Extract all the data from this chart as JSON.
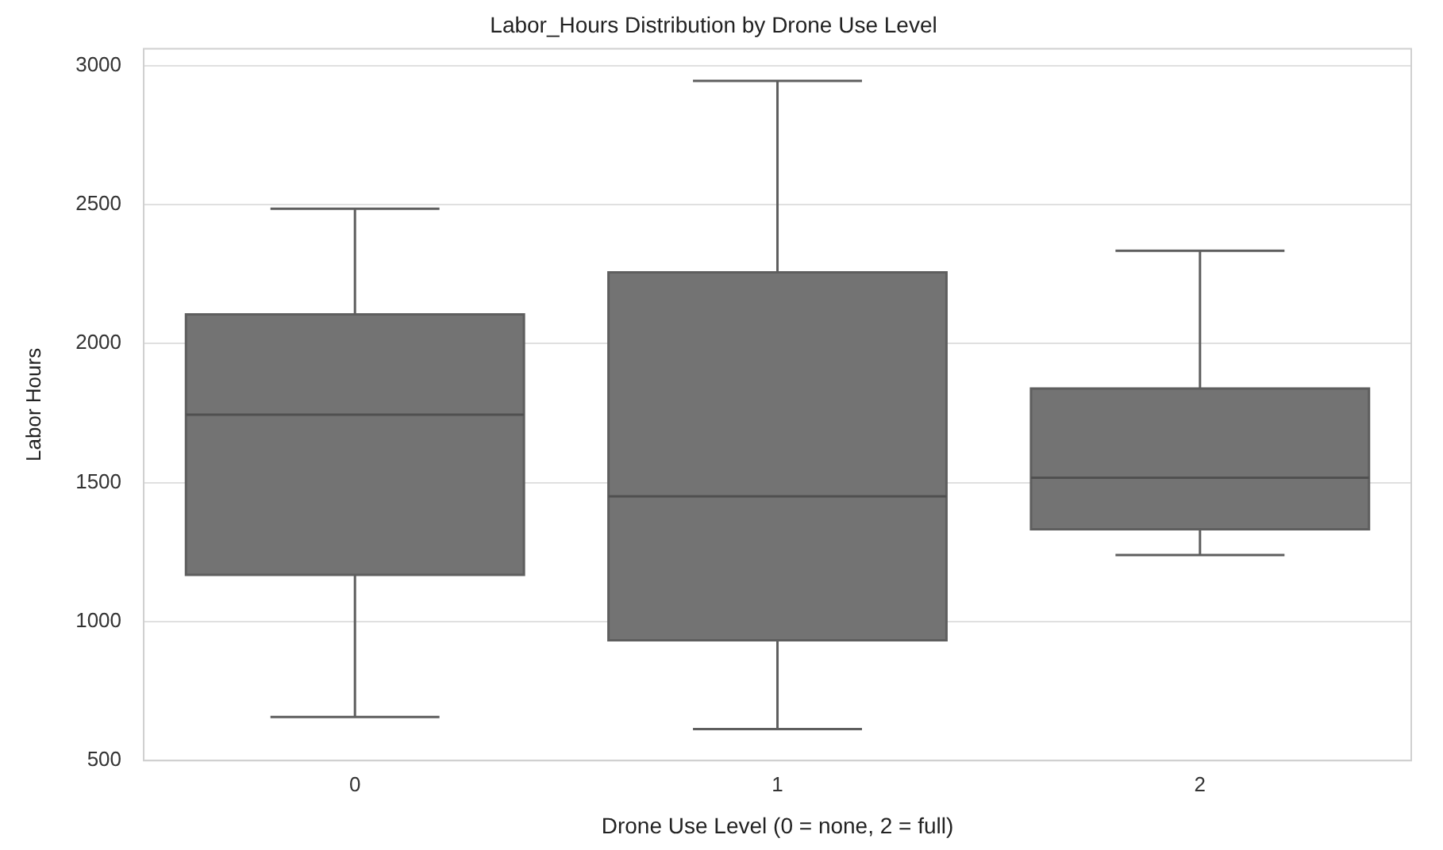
{
  "chart_data": {
    "type": "box",
    "title": "Labor_Hours Distribution by Drone Use Level",
    "xlabel": "Drone Use Level (0 = none, 2 = full)",
    "ylabel": "Labor Hours",
    "categories": [
      "0",
      "1",
      "2"
    ],
    "series": [
      {
        "color": "#737373",
        "boxes": [
          {
            "low": 657,
            "q1": 1168,
            "median": 1744,
            "q3": 2105,
            "high": 2485
          },
          {
            "low": 613,
            "q1": 933,
            "median": 1450,
            "q3": 2256,
            "high": 2945
          },
          {
            "low": 1239,
            "q1": 1332,
            "median": 1517,
            "q3": 1838,
            "high": 2334
          }
        ]
      }
    ],
    "ylim": [
      500,
      3060
    ],
    "yticks": [
      500,
      1000,
      1500,
      2000,
      2500,
      3000
    ],
    "grid": "y"
  }
}
